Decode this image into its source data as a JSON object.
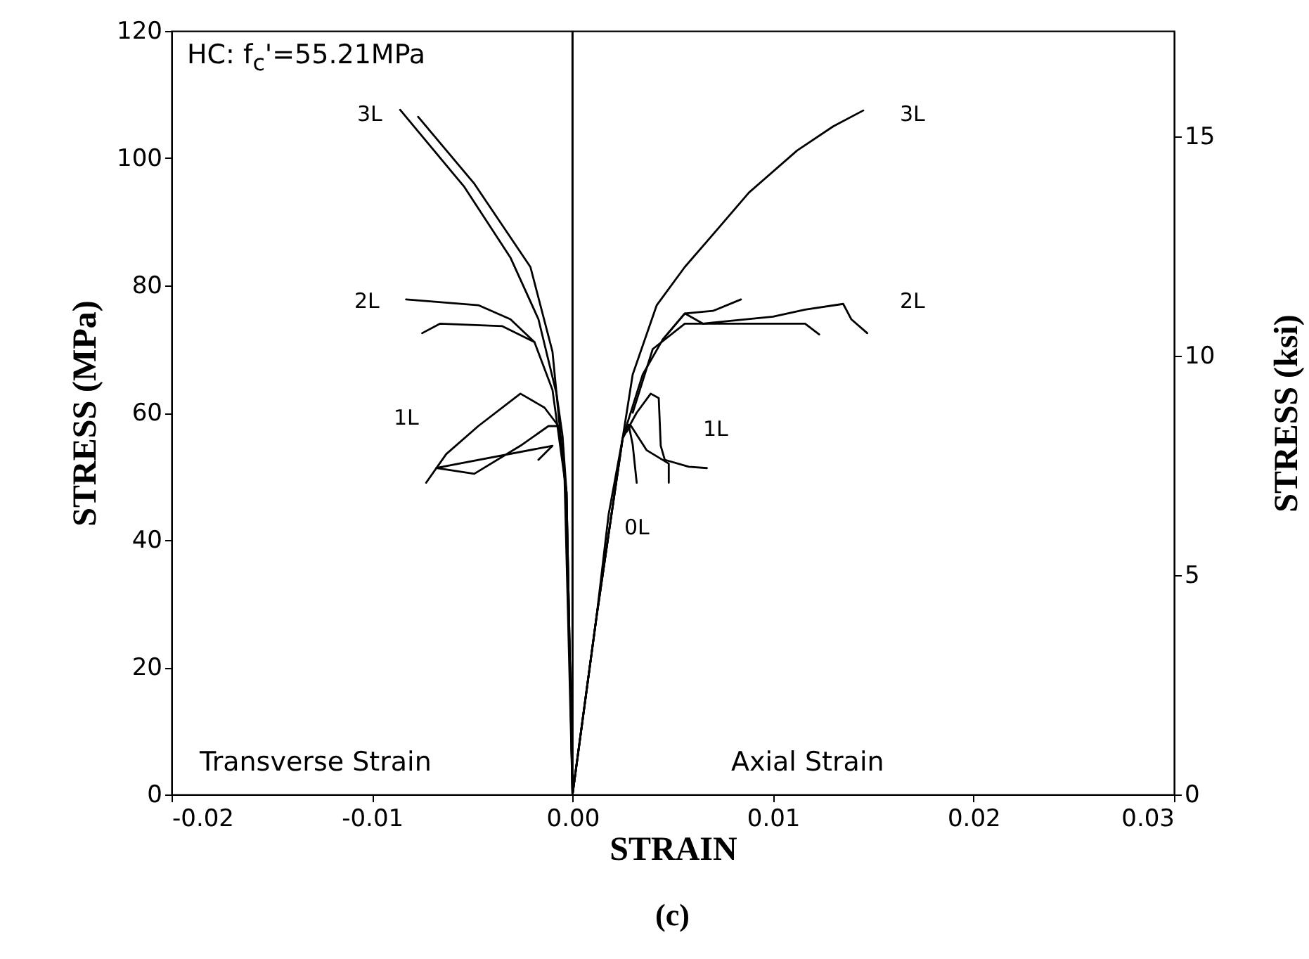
{
  "chart_data": {
    "type": "line",
    "xlabel": "STRAIN",
    "ylabel": "STRESS  (MPa)",
    "y2label": "STRESS  (ksi)",
    "xlim": [
      -0.02,
      0.03
    ],
    "xticks": [
      {
        "value": -0.02,
        "label": "-0.02"
      },
      {
        "value": -0.01,
        "label": "-0.01"
      },
      {
        "value": 0,
        "label": "0.00"
      },
      {
        "value": 0.01,
        "label": "0.01"
      },
      {
        "value": 0.02,
        "label": "0.02"
      },
      {
        "value": 0.03,
        "label": "0.03"
      }
    ],
    "ylim": [
      0,
      120
    ],
    "yticks": [
      0,
      20,
      40,
      60,
      80,
      100,
      120
    ],
    "y2lim": [
      0,
      17.4
    ],
    "y2ticks": [
      0,
      5,
      10,
      15
    ],
    "grid": false,
    "legend": false,
    "marker": "none",
    "line_style": "solid",
    "ref_lines": [
      {
        "axis": "x",
        "value": 0,
        "color": "#000000"
      }
    ],
    "annotations": [
      "HC: f$_{c}$'=55.21MPa",
      "Transverse Strain",
      "Axial Strain",
      "(c)",
      "3L",
      "3L",
      "2L",
      "2L",
      "1L",
      "1L",
      "0L"
    ],
    "series": [
      {
        "color": "#000000",
        "x": [
          0,
          0.0012,
          0.0018,
          0.0025,
          0.003,
          0.0042,
          0.0056,
          0.007,
          0.0088,
          0.0112,
          0.013,
          0.0145
        ],
        "values": [
          0,
          28,
          44,
          56,
          66,
          76.9,
          82.9,
          88,
          94.6,
          101.2,
          105,
          107.5
        ]
      },
      {
        "color": "#000000",
        "x": [
          0,
          0.0012,
          0.0025,
          0.0035,
          0.0045,
          0.0056,
          0.0065,
          0.01,
          0.0116,
          0.0135,
          0.0139,
          0.0147
        ],
        "values": [
          0,
          28,
          56,
          66,
          71.5,
          75.6,
          74,
          75.1,
          76.2,
          77.1,
          74.7,
          72.5
        ]
      },
      {
        "color": "#000000",
        "x": [
          0.003,
          0.004,
          0.0056,
          0.0077,
          0.0116,
          0.0123
        ],
        "values": [
          60,
          70,
          74,
          74,
          74,
          72.3
        ]
      },
      {
        "color": "#000000",
        "x": [
          0.0045,
          0.0056,
          0.007,
          0.0084
        ],
        "values": [
          71.5,
          75.6,
          76,
          77.8
        ]
      },
      {
        "color": "#000000",
        "x": [
          0,
          0.0012,
          0.0025,
          0.0032,
          0.0039,
          0.0043,
          0.0044,
          0.0046,
          0.0058,
          0.0067
        ],
        "values": [
          0,
          28,
          56,
          60,
          63,
          62.3,
          54.8,
          52.6,
          51.5,
          51.3
        ]
      },
      {
        "color": "#000000",
        "x": [
          0.0027,
          0.0029,
          0.0037,
          0.0048,
          0.0048
        ],
        "values": [
          57,
          58,
          54.1,
          52,
          49
        ]
      },
      {
        "color": "#000000",
        "x": [
          0,
          0.0012,
          0.0025,
          0.0028,
          0.003,
          0.0032
        ],
        "values": [
          0,
          28,
          56,
          58.1,
          55,
          49
        ]
      },
      {
        "color": "#000000",
        "x": [
          0,
          -0.0003,
          -0.0005,
          -0.0008,
          -0.0017,
          -0.0031,
          -0.0054,
          -0.0086
        ],
        "values": [
          0,
          47.5,
          56.4,
          63,
          74.7,
          84.4,
          95.5,
          107.6
        ]
      },
      {
        "color": "#000000",
        "x": [
          0,
          -0.0004,
          -0.001,
          -0.0021,
          -0.0049,
          -0.0077
        ],
        "values": [
          0,
          50,
          69.6,
          82.9,
          96,
          106.5
        ]
      },
      {
        "color": "#000000",
        "x": [
          0,
          -0.0003,
          -0.001,
          -0.0019,
          -0.0031,
          -0.0047,
          -0.0083
        ],
        "values": [
          0,
          47.5,
          63.6,
          71.1,
          74.7,
          76.9,
          77.8
        ]
      },
      {
        "color": "#000000",
        "x": [
          -0.0019,
          -0.0035,
          -0.0066,
          -0.0075
        ],
        "values": [
          71.1,
          73.6,
          74,
          72.5
        ]
      },
      {
        "color": "#000000",
        "x": [
          0,
          -0.0003,
          -0.0007,
          -0.0014,
          -0.0026,
          -0.0047,
          -0.0063,
          -0.0073
        ],
        "values": [
          0,
          47.5,
          57.9,
          60.8,
          63,
          57.9,
          53.5,
          49
        ]
      },
      {
        "color": "#000000",
        "x": [
          -0.0007,
          -0.0012,
          -0.0026,
          -0.0049,
          -0.0068,
          -0.001,
          -0.0017
        ],
        "values": [
          57.9,
          57.9,
          54.8,
          50.4,
          51.3,
          54.8,
          52.6
        ]
      }
    ]
  }
}
